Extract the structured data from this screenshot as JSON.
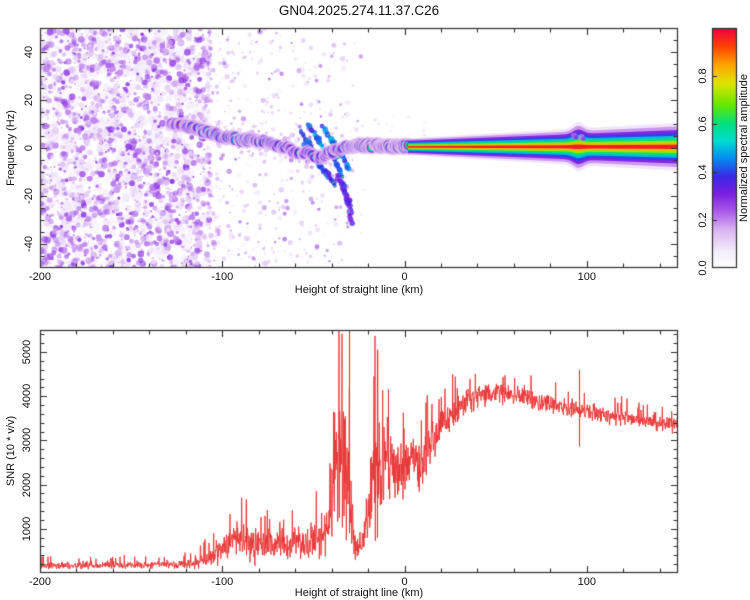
{
  "title": "GN04.2025.274.11.37.C26",
  "axes": {
    "xlabel_top": "Height of straight line (km)",
    "xlabel_bottom": "Height of straight line (km)",
    "ylabel_top": "Frequency (Hz)",
    "ylabel_bottom": "SNR (10 * v/v)",
    "colorbar_label": "Normalized spectral amplitude"
  },
  "colors": {
    "curve_red": "#e93434",
    "frame": "#2e2e2e",
    "text": "#111111",
    "background": "#ffffff",
    "colormap_stops": [
      [
        0.0,
        "#ffffff"
      ],
      [
        0.07,
        "#f4ecfb"
      ],
      [
        0.16,
        "#d9b3f0"
      ],
      [
        0.24,
        "#a855e8"
      ],
      [
        0.31,
        "#7a1fe0"
      ],
      [
        0.38,
        "#3c28e8"
      ],
      [
        0.46,
        "#0090f0"
      ],
      [
        0.53,
        "#00dcd0"
      ],
      [
        0.6,
        "#00e080"
      ],
      [
        0.68,
        "#66e800"
      ],
      [
        0.77,
        "#e0e400"
      ],
      [
        0.85,
        "#ffa000"
      ],
      [
        0.92,
        "#ff4400"
      ],
      [
        1.0,
        "#ee0045"
      ]
    ]
  },
  "chart_data": [
    {
      "type": "heatmap",
      "title": "GN04.2025.274.11.37.C26",
      "xlabel": "Height of straight line (km)",
      "ylabel": "Frequency (Hz)",
      "xlim": [
        -200,
        150
      ],
      "ylim": [
        -50,
        50
      ],
      "xticks": [
        -200,
        -100,
        0,
        100
      ],
      "xtick_labels": [
        "-200",
        "-100",
        "0",
        "100"
      ],
      "yticks": [
        40,
        20,
        0,
        -20,
        -40
      ],
      "ytick_labels": [
        "40",
        "20",
        "0",
        "-20",
        "-40"
      ],
      "minor_x_step": 20,
      "minor_y_step": 5,
      "colorbar": {
        "label": "Normalized spectral amplitude",
        "range": [
          0,
          1
        ],
        "ticks": [
          0.0,
          0.2,
          0.4,
          0.6,
          0.8
        ],
        "tick_labels": [
          "0.0",
          "0.2",
          "0.4",
          "0.6",
          "0.8"
        ]
      },
      "noise": {
        "dense_x_range": [
          -200,
          -107
        ],
        "dense_count": 2300,
        "dense_underlay_count": 520,
        "sparse_x_range": [
          -108,
          -22
        ],
        "sparse_count": 540,
        "near_ridge_count": 170,
        "above_line_count": 16,
        "seed": 1337
      },
      "ridge": [
        [
          -128,
          10.5,
          0.45
        ],
        [
          -125,
          10,
          0.55
        ],
        [
          -122,
          9.3,
          0.6
        ],
        [
          -119,
          9,
          0.65
        ],
        [
          -116,
          8.6,
          0.6
        ],
        [
          -113,
          7.7,
          0.55
        ],
        [
          -110,
          7.2,
          0.7
        ],
        [
          -107,
          6.3,
          0.75
        ],
        [
          -104,
          5.7,
          0.8
        ],
        [
          -101,
          4.7,
          0.7
        ],
        [
          -98,
          4.3,
          0.6
        ],
        [
          -95,
          4.7,
          0.65
        ],
        [
          -92,
          3.9,
          0.7
        ],
        [
          -89,
          3.3,
          0.75
        ],
        [
          -86,
          3.5,
          0.8
        ],
        [
          -83,
          2.9,
          0.75
        ],
        [
          -80,
          2.3,
          0.7
        ],
        [
          -77,
          2.7,
          0.6
        ],
        [
          -74,
          1.9,
          0.55
        ],
        [
          -71,
          1.3,
          0.6
        ],
        [
          -68,
          0.7,
          0.65
        ],
        [
          -65,
          -0.1,
          0.6
        ],
        [
          -62,
          -1.1,
          0.55
        ],
        [
          -59,
          -2.1,
          0.5
        ],
        [
          -56,
          -2.7,
          0.55
        ],
        [
          -53,
          -1.7,
          0.5
        ],
        [
          -50,
          -3.1,
          0.45
        ],
        [
          -47,
          -4.1,
          0.5
        ],
        [
          -44,
          -3.1,
          0.5
        ],
        [
          -41,
          -2.1,
          0.55
        ],
        [
          -38,
          -1.1,
          0.5
        ],
        [
          -35,
          -0.5,
          0.55
        ],
        [
          -32,
          0.3,
          0.6
        ],
        [
          -29,
          0.9,
          0.7
        ],
        [
          -26,
          1.2,
          0.75
        ],
        [
          -24,
          1.3,
          0.85
        ],
        [
          -22,
          0.9,
          0.9
        ],
        [
          -20,
          1.2,
          0.85
        ],
        [
          -18,
          0.8,
          0.95
        ],
        [
          -16,
          1.1,
          0.9
        ],
        [
          -14,
          0.7,
          0.95
        ],
        [
          -12,
          0.9,
          0.9
        ],
        [
          -10,
          0.6,
          1.0
        ],
        [
          -8,
          0.9,
          0.92
        ],
        [
          -6,
          0.6,
          0.97
        ],
        [
          -4,
          0.8,
          0.93
        ],
        [
          -2,
          0.5,
          1.0
        ],
        [
          0,
          0.7,
          0.95
        ],
        [
          2,
          0.5,
          1.0
        ]
      ],
      "fan_streaks": [
        [
          -57,
          7,
          -49,
          -2,
          0.5
        ],
        [
          -55,
          1,
          -47,
          -7,
          0.55
        ],
        [
          -53,
          10,
          -46,
          2,
          0.45
        ],
        [
          -51,
          -3,
          -44,
          -10,
          0.5
        ],
        [
          -49,
          5,
          -42,
          -3,
          0.6
        ],
        [
          -47,
          -6,
          -41,
          -13,
          0.45
        ],
        [
          -45,
          9,
          -39,
          2,
          0.55
        ],
        [
          -43,
          -9,
          -38,
          -16,
          0.4
        ],
        [
          -41,
          4,
          -36,
          -4,
          0.6
        ],
        [
          -39,
          -4,
          -34,
          -12,
          0.5
        ],
        [
          -37,
          -11,
          -33,
          -19,
          0.4
        ],
        [
          -35,
          -1,
          -31,
          -9,
          0.5
        ],
        [
          -34,
          -15,
          -30,
          -23,
          0.38
        ],
        [
          -32,
          -20,
          -29,
          -27,
          0.32
        ],
        [
          -31,
          -26,
          -29,
          -31,
          0.28
        ]
      ],
      "carrier_line": {
        "x_range": [
          2,
          150
        ],
        "freq": 0.5,
        "half_width_hz_start": 1.8,
        "half_width_hz_end": 5.0,
        "bump_km": 95,
        "bump_gain": 0.35,
        "above_bump_blobs": [
          [
            93,
            5,
            0.22
          ],
          [
            97,
            4.5,
            0.2
          ]
        ]
      }
    },
    {
      "type": "line",
      "xlabel": "Height of straight line (km)",
      "ylabel": "SNR (10 * v/v)",
      "xlim": [
        -200,
        150
      ],
      "ylim": [
        0,
        5500
      ],
      "xticks": [
        -200,
        -100,
        0,
        100
      ],
      "xtick_labels": [
        "-200",
        "-100",
        "0",
        "100"
      ],
      "yticks": [
        1000,
        2000,
        3000,
        4000,
        5000
      ],
      "ytick_labels": [
        "1000",
        "2000",
        "3000",
        "4000",
        "5000"
      ],
      "minor_x_step": 20,
      "minor_y_step": 200,
      "color": "#e93434",
      "seed": 77,
      "profile": [
        [
          -200,
          170,
          100
        ],
        [
          -170,
          170,
          100
        ],
        [
          -140,
          180,
          110
        ],
        [
          -120,
          200,
          130
        ],
        [
          -112,
          260,
          180
        ],
        [
          -104,
          420,
          300
        ],
        [
          -97,
          650,
          450
        ],
        [
          -91,
          820,
          580
        ],
        [
          -86,
          760,
          520
        ],
        [
          -81,
          600,
          420
        ],
        [
          -76,
          620,
          430
        ],
        [
          -71,
          650,
          450
        ],
        [
          -66,
          640,
          450
        ],
        [
          -61,
          700,
          480
        ],
        [
          -56,
          680,
          470
        ],
        [
          -51,
          720,
          500
        ],
        [
          -47,
          820,
          570
        ],
        [
          -44,
          950,
          680
        ],
        [
          -41,
          1400,
          1000
        ],
        [
          -38,
          2100,
          1600
        ],
        [
          -35,
          2700,
          2100
        ],
        [
          -32,
          2500,
          2000
        ],
        [
          -30,
          1400,
          1000
        ],
        [
          -28,
          700,
          480
        ],
        [
          -26,
          500,
          340
        ],
        [
          -24,
          600,
          420
        ],
        [
          -22,
          900,
          640
        ],
        [
          -20,
          1400,
          1000
        ],
        [
          -18,
          2000,
          1400
        ],
        [
          -16,
          2400,
          1700
        ],
        [
          -14,
          2300,
          1400
        ],
        [
          -12,
          2400,
          1150
        ],
        [
          -10,
          2450,
          1000
        ],
        [
          -8,
          2350,
          900
        ],
        [
          -6,
          2400,
          820
        ],
        [
          -4,
          2300,
          760
        ],
        [
          -2,
          2400,
          730
        ],
        [
          0,
          2480,
          700
        ],
        [
          2,
          2420,
          760
        ],
        [
          4,
          2550,
          820
        ],
        [
          6,
          2480,
          780
        ],
        [
          8,
          2250,
          880
        ],
        [
          10,
          2500,
          800
        ],
        [
          12,
          2750,
          700
        ],
        [
          14,
          2950,
          620
        ],
        [
          16,
          3050,
          560
        ],
        [
          19,
          3250,
          520
        ],
        [
          22,
          3420,
          480
        ],
        [
          25,
          3520,
          450
        ],
        [
          28,
          3650,
          430
        ],
        [
          31,
          3780,
          400
        ],
        [
          35,
          3920,
          380
        ],
        [
          40,
          4020,
          350
        ],
        [
          45,
          4070,
          330
        ],
        [
          50,
          4090,
          320
        ],
        [
          55,
          4060,
          310
        ],
        [
          60,
          4020,
          305
        ],
        [
          65,
          3975,
          300
        ],
        [
          70,
          3930,
          290
        ],
        [
          75,
          3880,
          285
        ],
        [
          80,
          3835,
          275
        ],
        [
          85,
          3790,
          265
        ],
        [
          90,
          3745,
          260
        ],
        [
          95,
          3705,
          255
        ],
        [
          100,
          3665,
          250
        ],
        [
          105,
          3625,
          245
        ],
        [
          110,
          3585,
          240
        ],
        [
          115,
          3545,
          235
        ],
        [
          120,
          3505,
          230
        ],
        [
          125,
          3470,
          225
        ],
        [
          130,
          3440,
          220
        ],
        [
          135,
          3410,
          215
        ],
        [
          140,
          3385,
          210
        ],
        [
          145,
          3365,
          205
        ],
        [
          150,
          3350,
          205
        ]
      ],
      "spikes": [
        {
          "km": -87,
          "lo": 400,
          "hi": 1560
        },
        {
          "km": -30.5,
          "lo": 900,
          "hi": 5480
        },
        {
          "km": -15,
          "lo": 800,
          "hi": 5060
        },
        {
          "km": -9,
          "lo": 1900,
          "hi": 4160
        },
        {
          "km": 95.5,
          "lo": 2860,
          "hi": 4600
        }
      ]
    }
  ]
}
